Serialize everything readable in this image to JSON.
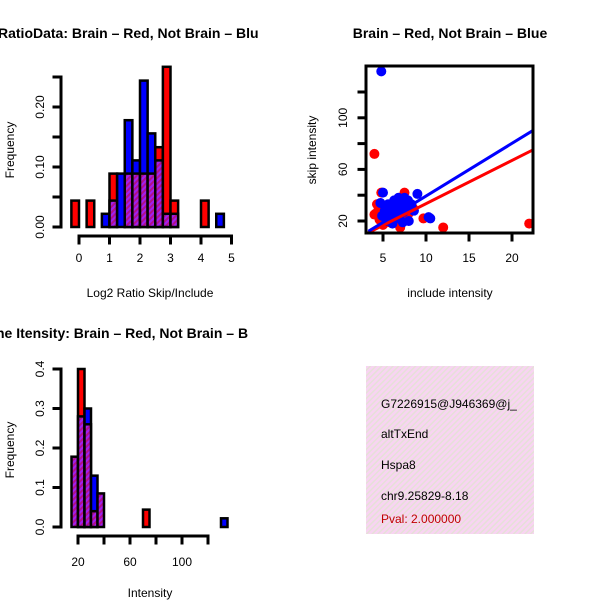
{
  "chart_data": [
    {
      "type": "bar",
      "title": "RatioData: Brain – Red, Not Brain – Blu",
      "xlabel": "Log2 Ratio Skip/Include",
      "ylabel": "Frequency",
      "xlim": [
        0,
        5
      ],
      "ylim": [
        0,
        0.25
      ],
      "xticks": [
        0,
        1,
        2,
        3,
        4,
        5
      ],
      "yticks": [
        0,
        0.05,
        0.1,
        0.15,
        0.2,
        0.25
      ],
      "ytick_labels": [
        "0.00",
        "0.10",
        "0.20"
      ],
      "bin_width": 0.25,
      "bins": [
        -0.25,
        0.25,
        0.75,
        1.0,
        1.25,
        1.5,
        1.75,
        2.0,
        2.25,
        2.5,
        2.75,
        3.0,
        4.0,
        4.5
      ],
      "series": [
        {
          "name": "Brain",
          "color": "#ff0000",
          "values": [
            0.044,
            0.044,
            0,
            0.089,
            0,
            0.089,
            0.089,
            0.089,
            0.089,
            0.133,
            0.267,
            0.044,
            0.044,
            0
          ]
        },
        {
          "name": "Not Brain",
          "color": "#0000ff",
          "values": [
            0,
            0,
            0.022,
            0.044,
            0.089,
            0.178,
            0.111,
            0.244,
            0.156,
            0.111,
            0.022,
            0.022,
            0,
            0.022
          ]
        }
      ]
    },
    {
      "type": "scatter",
      "title": "Brain – Red, Not Brain – Blue",
      "xlabel": "include intensity",
      "ylabel": "skip intensity",
      "xlim": [
        3,
        22.4
      ],
      "ylim": [
        11,
        141
      ],
      "xticks": [
        5,
        10,
        15,
        20
      ],
      "yticks": [
        20,
        40,
        60,
        80,
        100,
        120
      ],
      "ytick_labels": [
        "20",
        "60",
        "100"
      ],
      "series": [
        {
          "name": "Brain",
          "color": "#ff0000",
          "points": [
            [
              4.0,
              72
            ],
            [
              4.8,
              42
            ],
            [
              4.5,
              30
            ],
            [
              4.2,
              26
            ],
            [
              4.0,
              25
            ],
            [
              7.5,
              42
            ],
            [
              9.7,
              22
            ],
            [
              12,
              15
            ],
            [
              22,
              18
            ],
            [
              5,
              17
            ],
            [
              7,
              15
            ],
            [
              4.3,
              33
            ],
            [
              5.5,
              24
            ],
            [
              6.2,
              28
            ],
            [
              6.8,
              20
            ],
            [
              7.2,
              30
            ],
            [
              8.0,
              26
            ],
            [
              5.8,
              19
            ],
            [
              6.5,
              35
            ],
            [
              7.8,
              22
            ],
            [
              4.6,
              21
            ],
            [
              5.2,
              29
            ],
            [
              8.5,
              30
            ]
          ],
          "fit": [
            [
              3.3,
              11
            ],
            [
              22.4,
              75
            ]
          ]
        },
        {
          "name": "Not Brain",
          "color": "#0000ff",
          "points": [
            [
              4.8,
              136
            ],
            [
              5,
              42
            ],
            [
              9,
              41
            ],
            [
              10.5,
              22
            ],
            [
              7.5,
              38
            ],
            [
              5.2,
              28
            ],
            [
              5.6,
              33
            ],
            [
              6.0,
              25
            ],
            [
              6.3,
              36
            ],
            [
              6.6,
              30
            ],
            [
              6.9,
              22
            ],
            [
              7.1,
              34
            ],
            [
              7.4,
              27
            ],
            [
              7.7,
              31
            ],
            [
              8.0,
              20
            ],
            [
              8.3,
              33
            ],
            [
              5.4,
              20
            ],
            [
              6.1,
              18
            ],
            [
              6.8,
              38
            ],
            [
              4.9,
              24
            ],
            [
              7.9,
              36
            ],
            [
              8.6,
              28
            ],
            [
              5.9,
              31
            ],
            [
              6.4,
              24
            ],
            [
              7.3,
              19
            ],
            [
              4.7,
              34
            ],
            [
              10.3,
              23
            ]
          ],
          "fit": [
            [
              3.3,
              12
            ],
            [
              22.4,
              90
            ]
          ]
        }
      ]
    },
    {
      "type": "bar",
      "title": "ne Itensity: Brain – Red, Not Brain – B",
      "xlabel": "Intensity",
      "ylabel": "Frequency",
      "xlim": [
        20,
        120
      ],
      "ylim": [
        0,
        0.4
      ],
      "xticks": [
        20,
        40,
        60,
        80,
        100,
        120
      ],
      "xtick_labels": [
        "20",
        "60",
        "100"
      ],
      "yticks": [
        0,
        0.1,
        0.2,
        0.3,
        0.4
      ],
      "ytick_labels": [
        "0.0",
        "0.1",
        "0.2",
        "0.3",
        "0.4"
      ],
      "bin_width": 5,
      "bins": [
        15,
        20,
        25,
        30,
        35,
        70,
        130
      ],
      "series": [
        {
          "name": "Brain",
          "color": "#ff0000",
          "values": [
            0.178,
            0.4,
            0.26,
            0.04,
            0.085,
            0.044,
            0
          ]
        },
        {
          "name": "Not Brain",
          "color": "#0000ff",
          "values": [
            0.178,
            0.28,
            0.3,
            0.13,
            0.085,
            0,
            0.022
          ]
        }
      ]
    }
  ],
  "info_box": {
    "lines": [
      "G7226915@J946369@j_",
      "altTxEnd",
      "Hspa8",
      "chr9.25829-8.18"
    ],
    "pval": "Pval: 2.000000",
    "pval_color": "#c00000"
  }
}
